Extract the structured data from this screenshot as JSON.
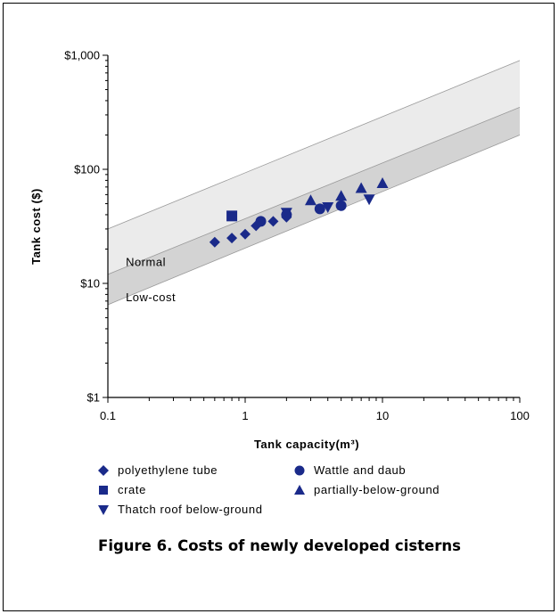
{
  "figure": {
    "caption": "Figure 6. Costs of newly developed cisterns"
  },
  "colors": {
    "marker": "#1a2a8a",
    "normal_band": "#ebebeb",
    "lowcost_band": "#d3d3d3",
    "band_edge": "#9a9a9a"
  },
  "chart_data": {
    "type": "scatter",
    "xlabel": "Tank capacity(m³)",
    "ylabel": "Tank cost ($)",
    "x_scale": "log",
    "y_scale": "log",
    "xlim": [
      0.1,
      100
    ],
    "ylim": [
      1,
      1000
    ],
    "x_ticks": [
      0.1,
      1,
      10,
      100
    ],
    "x_tick_labels": [
      "0.1",
      "1",
      "10",
      "100"
    ],
    "y_ticks": [
      1,
      10,
      100,
      1000
    ],
    "y_tick_labels": [
      "$1",
      "$10",
      "$100",
      "$1,000"
    ],
    "grid": false,
    "legend_position": "bottom",
    "bands": [
      {
        "label": "Normal",
        "lower": [
          [
            0.1,
            12
          ],
          [
            100,
            350
          ]
        ],
        "upper": [
          [
            0.1,
            30
          ],
          [
            100,
            900
          ]
        ]
      },
      {
        "label": "Low-cost",
        "lower": [
          [
            0.1,
            6.5
          ],
          [
            100,
            200
          ]
        ],
        "upper": [
          [
            0.1,
            12
          ],
          [
            100,
            350
          ]
        ]
      }
    ],
    "series": [
      {
        "name": "polyethylene tube",
        "marker": "diamond",
        "points": [
          [
            0.6,
            23
          ],
          [
            0.8,
            25
          ],
          [
            1.0,
            27
          ],
          [
            1.2,
            32
          ],
          [
            1.6,
            35
          ],
          [
            2.0,
            38
          ]
        ]
      },
      {
        "name": "Wattle and daub",
        "marker": "circle",
        "points": [
          [
            1.3,
            35
          ],
          [
            2.0,
            40
          ],
          [
            3.5,
            45
          ],
          [
            5.0,
            48
          ]
        ]
      },
      {
        "name": "crate",
        "marker": "square",
        "points": [
          [
            0.8,
            39
          ]
        ]
      },
      {
        "name": "partially-below-ground",
        "marker": "triangle-up",
        "points": [
          [
            3.0,
            53
          ],
          [
            5.0,
            58
          ],
          [
            7.0,
            68
          ],
          [
            10.0,
            75
          ]
        ]
      },
      {
        "name": "Thatch roof below-ground",
        "marker": "triangle-down",
        "points": [
          [
            2.0,
            42
          ],
          [
            4.0,
            47
          ],
          [
            8.0,
            55
          ]
        ]
      }
    ]
  }
}
